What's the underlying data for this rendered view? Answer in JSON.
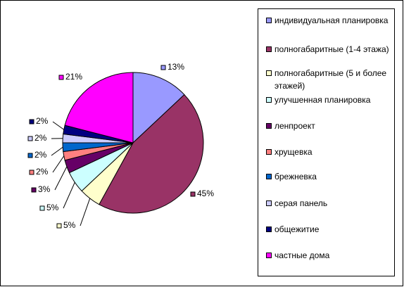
{
  "chart_data": {
    "type": "pie",
    "categories": [
      "индивидуальная планировка",
      "полногабаритные (1-4 этажа)",
      "полногабаритные (5 и более этажей)",
      "улучшенная планировка",
      "ленпроект",
      "хрущевка",
      "брежневка",
      "серая панель",
      "общежитие",
      "частные дома"
    ],
    "values": [
      13,
      45,
      5,
      5,
      3,
      2,
      2,
      2,
      2,
      21
    ],
    "value_labels": [
      "13%",
      "45%",
      "5%",
      "5%",
      "3%",
      "2%",
      "2%",
      "2%",
      "2%",
      "21%"
    ],
    "colors": [
      "#9999ff",
      "#993366",
      "#ffffcc",
      "#ccffff",
      "#660066",
      "#ff8080",
      "#0066cc",
      "#ccccff",
      "#000080",
      "#ff00ff"
    ]
  }
}
